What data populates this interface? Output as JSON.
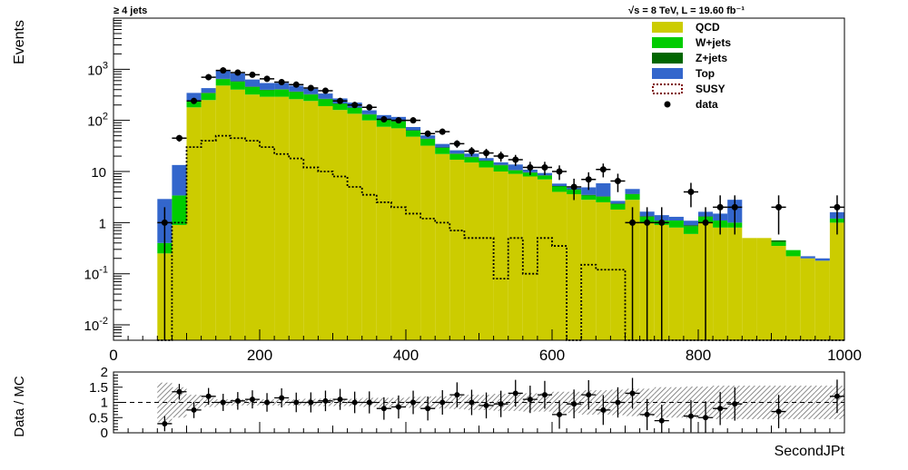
{
  "header": {
    "selection": "≥ 4 jets",
    "energy_lumi": "√s = 8 TeV, L = 19.60 fb⁻¹"
  },
  "chart_data": [
    {
      "type": "bar",
      "stacked": true,
      "log_y": true,
      "xlabel": "SecondJPt",
      "ylabel": "Events",
      "xlim": [
        0,
        1000
      ],
      "ylim": [
        0.005,
        10000
      ],
      "bin_width": 20,
      "bin_edges_start": [
        60,
        80,
        100,
        120,
        140,
        160,
        180,
        200,
        220,
        240,
        260,
        280,
        300,
        320,
        340,
        360,
        380,
        400,
        420,
        440,
        460,
        480,
        500,
        520,
        540,
        560,
        580,
        600,
        620,
        640,
        660,
        680,
        700,
        720,
        740,
        760,
        780,
        800,
        820,
        840,
        860,
        880,
        900,
        920,
        940,
        960,
        980
      ],
      "x_ticks": [
        0,
        200,
        400,
        600,
        800,
        1000
      ],
      "x_tick_labels": [
        "0",
        "200",
        "400",
        "600",
        "800",
        "1000"
      ],
      "y_ticks": [
        0.01,
        0.1,
        1,
        10,
        100,
        1000
      ],
      "y_tick_labels": [
        {
          "base": "10",
          "exp": "-2"
        },
        {
          "base": "10",
          "exp": "-1"
        },
        {
          "base": "1",
          "exp": ""
        },
        {
          "base": "10",
          "exp": ""
        },
        {
          "base": "10",
          "exp": "2"
        },
        {
          "base": "10",
          "exp": "3"
        }
      ],
      "series": [
        {
          "name": "QCD",
          "color": "#cccc00",
          "values": [
            0.25,
            0.9,
            180,
            250,
            480,
            400,
            320,
            290,
            290,
            260,
            240,
            190,
            160,
            135,
            100,
            75,
            70,
            48,
            32,
            22,
            17,
            15,
            12,
            10,
            9,
            8,
            7,
            4,
            3.6,
            2.8,
            2.5,
            1.8,
            2.8,
            1.0,
            0.9,
            0.8,
            0.6,
            1.0,
            0.8,
            0.8,
            0.5,
            0.5,
            0.35,
            0.22,
            0.2,
            0.18,
            1.0
          ]
        },
        {
          "name": "W+jets",
          "color": "#00cc00",
          "values": [
            0.15,
            2.5,
            60,
            90,
            160,
            170,
            130,
            100,
            110,
            100,
            80,
            70,
            50,
            40,
            30,
            30,
            25,
            15,
            11,
            7,
            5,
            4,
            4,
            3.2,
            1.5,
            1.5,
            1.3,
            1.1,
            0.8,
            0.6,
            0.7,
            0.5,
            0.8,
            0.3,
            0.2,
            0.3,
            0.25,
            0.3,
            0.3,
            0.2,
            0.0,
            0.0,
            0.07,
            0.07,
            0.0,
            0.0,
            0.2
          ]
        },
        {
          "name": "Z+jets",
          "color": "#006600",
          "values": [
            0.0,
            0.0,
            5,
            8,
            10,
            12,
            10,
            8,
            8,
            7,
            6,
            5,
            4,
            3,
            2.5,
            2,
            2,
            1.2,
            1,
            0.6,
            0.5,
            0.4,
            0.3,
            0.3,
            0.2,
            0.15,
            0.15,
            0.1,
            0.1,
            0.1,
            0.08,
            0.06,
            0.05,
            0.04,
            0.0,
            0.0,
            0.04,
            0.03,
            0.0,
            0.0,
            0.0,
            0.0,
            0.03,
            0.0,
            0.0,
            0.0,
            0.0
          ]
        },
        {
          "name": "Top",
          "color": "#3366cc",
          "values": [
            2.5,
            10,
            100,
            80,
            300,
            250,
            170,
            140,
            130,
            110,
            90,
            70,
            55,
            45,
            25,
            20,
            20,
            10,
            7,
            5,
            3.5,
            3,
            2,
            1.6,
            3,
            1.2,
            0.9,
            0.6,
            0.3,
            1.4,
            2.6,
            0.3,
            0.9,
            0.3,
            0.3,
            0.2,
            0.2,
            0.3,
            0.4,
            1.8,
            0.0,
            0.0,
            0.0,
            0.0,
            0.02,
            0.02,
            0.4
          ]
        },
        {
          "name": "SUSY",
          "color": "#800000",
          "values": [
            0.003,
            1,
            30,
            40,
            50,
            45,
            40,
            30,
            22,
            18,
            12,
            10,
            8,
            5,
            3.5,
            2.5,
            2.0,
            1.5,
            1.2,
            1.0,
            0.7,
            0.5,
            0.5,
            0.08,
            0.5,
            0.1,
            0.5,
            0.35,
            0.003,
            0.15,
            0.12,
            0.12,
            0.003,
            0.003,
            0.003,
            0.003,
            0.003,
            0.003,
            0.003,
            0.003,
            0.003,
            0.003,
            0.003,
            0.003,
            0.003,
            0.003,
            0.003
          ]
        }
      ],
      "data_series": {
        "name": "data",
        "x": [
          70,
          90,
          110,
          130,
          150,
          170,
          190,
          210,
          230,
          250,
          270,
          290,
          310,
          330,
          350,
          370,
          390,
          410,
          430,
          450,
          470,
          490,
          510,
          530,
          550,
          570,
          590,
          610,
          630,
          650,
          670,
          690,
          710,
          730,
          750,
          790,
          810,
          830,
          850,
          910,
          990
        ],
        "y": [
          1,
          45,
          240,
          700,
          950,
          860,
          780,
          650,
          560,
          500,
          430,
          380,
          240,
          200,
          180,
          105,
          100,
          100,
          55,
          60,
          35,
          25,
          23,
          20,
          17,
          12,
          12,
          10,
          5,
          7,
          11,
          6.5,
          1,
          1,
          1,
          4,
          1,
          2,
          2,
          2,
          2
        ]
      },
      "legend": {
        "placement": "top-right",
        "entries": [
          {
            "label": "QCD",
            "style": "fill",
            "color": "#cccc00"
          },
          {
            "label": "W+jets",
            "style": "fill",
            "color": "#00cc00"
          },
          {
            "label": "Z+jets",
            "style": "fill",
            "color": "#006600"
          },
          {
            "label": "Top",
            "style": "fill",
            "color": "#3366cc"
          },
          {
            "label": "SUSY",
            "style": "dashed-outline",
            "color": "#800000"
          },
          {
            "label": "data",
            "style": "marker",
            "color": "#000000"
          }
        ]
      }
    },
    {
      "type": "scatter",
      "ylabel": "Data / MC",
      "xlabel": "SecondJPt",
      "xlim": [
        0,
        1000
      ],
      "ylim": [
        0,
        2
      ],
      "y_ticks": [
        0,
        0.5,
        1,
        1.5,
        2
      ],
      "y_tick_labels": [
        "0",
        "0.5",
        "1",
        "1.5",
        "2"
      ],
      "reference_line": 1,
      "ratio": {
        "x": [
          70,
          90,
          110,
          130,
          150,
          170,
          190,
          210,
          230,
          250,
          270,
          290,
          310,
          330,
          350,
          370,
          390,
          410,
          430,
          450,
          470,
          490,
          510,
          530,
          550,
          570,
          590,
          610,
          630,
          650,
          670,
          690,
          710,
          730,
          750,
          790,
          810,
          830,
          850,
          910,
          990
        ],
        "y": [
          0.3,
          1.35,
          0.75,
          1.2,
          1.0,
          1.05,
          1.1,
          1.0,
          1.15,
          1.0,
          1.0,
          1.05,
          1.1,
          1.0,
          1.0,
          0.8,
          0.85,
          1.0,
          0.8,
          1.0,
          1.25,
          1.0,
          0.9,
          0.95,
          1.3,
          1.1,
          1.25,
          0.6,
          0.95,
          1.25,
          0.75,
          1.0,
          1.3,
          0.6,
          0.4,
          0.55,
          0.5,
          0.8,
          0.95,
          0.7,
          1.2
        ]
      },
      "uncertainty_band": {
        "x_start": 60,
        "x_end": 1000,
        "lower": [
          0.35,
          0.5,
          0.75,
          0.85,
          0.9,
          0.9,
          0.9,
          0.9,
          0.9,
          0.9,
          0.88,
          0.88,
          0.88,
          0.88,
          0.85,
          0.85,
          0.85,
          0.82,
          0.8,
          0.8,
          0.78,
          0.75,
          0.75,
          0.72,
          0.72,
          0.7,
          0.7,
          0.65,
          0.65,
          0.6,
          0.6,
          0.58,
          0.55,
          0.55,
          0.5,
          0.5,
          0.48,
          0.48,
          0.45,
          0.45,
          0.45,
          0.45,
          0.45,
          0.45,
          0.45,
          0.45,
          0.45
        ],
        "upper": [
          1.65,
          1.5,
          1.25,
          1.15,
          1.1,
          1.1,
          1.1,
          1.1,
          1.1,
          1.1,
          1.12,
          1.12,
          1.12,
          1.12,
          1.15,
          1.15,
          1.15,
          1.18,
          1.2,
          1.2,
          1.22,
          1.25,
          1.25,
          1.28,
          1.28,
          1.3,
          1.3,
          1.35,
          1.35,
          1.4,
          1.4,
          1.42,
          1.45,
          1.45,
          1.5,
          1.5,
          1.52,
          1.52,
          1.55,
          1.55,
          1.55,
          1.55,
          1.55,
          1.55,
          1.55,
          1.55,
          1.55
        ]
      }
    }
  ]
}
